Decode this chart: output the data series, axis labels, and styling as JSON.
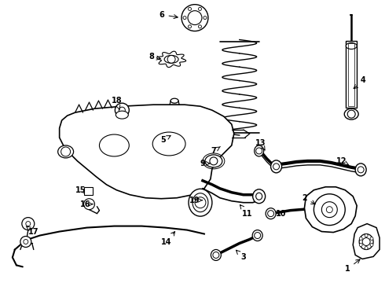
{
  "background_color": "#ffffff",
  "figsize": [
    4.9,
    3.6
  ],
  "dpi": 100,
  "label_specs": [
    [
      "1",
      443,
      343,
      462,
      328
    ],
    [
      "2",
      388,
      252,
      405,
      262
    ],
    [
      "3",
      310,
      328,
      300,
      318
    ],
    [
      "4",
      463,
      102,
      448,
      115
    ],
    [
      "5",
      207,
      178,
      218,
      172
    ],
    [
      "6",
      206,
      18,
      230,
      22
    ],
    [
      "7",
      272,
      192,
      283,
      185
    ],
    [
      "8",
      193,
      72,
      208,
      75
    ],
    [
      "9",
      258,
      208,
      268,
      208
    ],
    [
      "10",
      358,
      272,
      350,
      268
    ],
    [
      "11",
      315,
      272,
      305,
      260
    ],
    [
      "12",
      435,
      205,
      445,
      210
    ],
    [
      "13",
      332,
      182,
      338,
      192
    ],
    [
      "14",
      212,
      308,
      225,
      292
    ],
    [
      "15",
      102,
      242,
      112,
      245
    ],
    [
      "16",
      108,
      260,
      118,
      260
    ],
    [
      "17",
      42,
      295,
      32,
      288
    ],
    [
      "18",
      148,
      128,
      152,
      140
    ],
    [
      "19",
      248,
      255,
      258,
      255
    ]
  ]
}
